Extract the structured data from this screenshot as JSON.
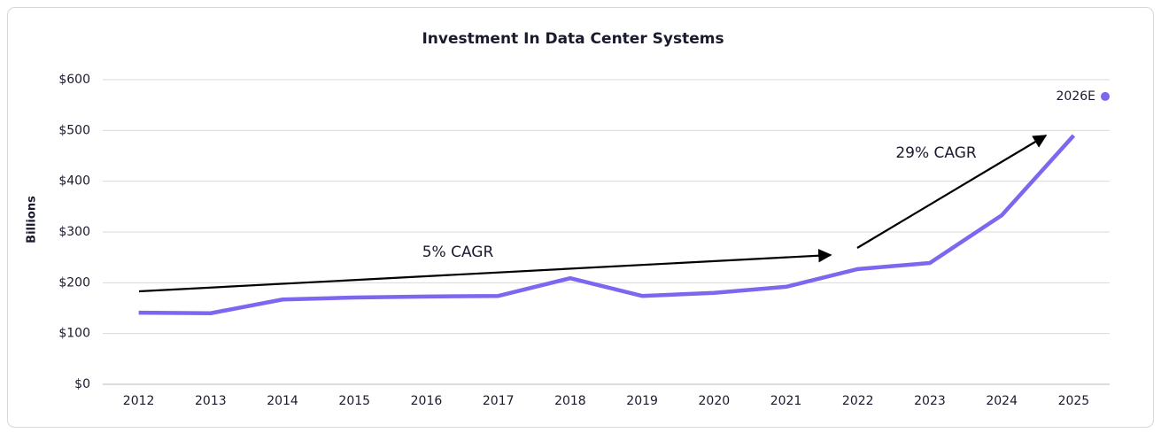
{
  "chart_data": {
    "type": "line",
    "title": "Investment In Data Center Systems",
    "y_label": "Billions",
    "categories": [
      "2012",
      "2013",
      "2014",
      "2015",
      "2016",
      "2017",
      "2018",
      "2019",
      "2020",
      "2021",
      "2022",
      "2023",
      "2024",
      "2025"
    ],
    "series": [
      {
        "color": "#7b68ee",
        "values": [
          141,
          140,
          167,
          171,
          173,
          174,
          209,
          174,
          180,
          192,
          227,
          239,
          333,
          490
        ]
      }
    ],
    "estimate": {
      "label": "2026E",
      "value": 567
    },
    "annotations": [
      "5% CAGR",
      "29% CAGR"
    ],
    "ylim": [
      0,
      600
    ],
    "yticks": [
      {
        "value": 0,
        "label": "$0"
      },
      {
        "value": 100,
        "label": "$100"
      },
      {
        "value": 200,
        "label": "$200"
      },
      {
        "value": 300,
        "label": "$300"
      },
      {
        "value": 400,
        "label": "$400"
      },
      {
        "value": 500,
        "label": "$500"
      },
      {
        "value": 600,
        "label": "$600"
      }
    ],
    "grid": true
  }
}
